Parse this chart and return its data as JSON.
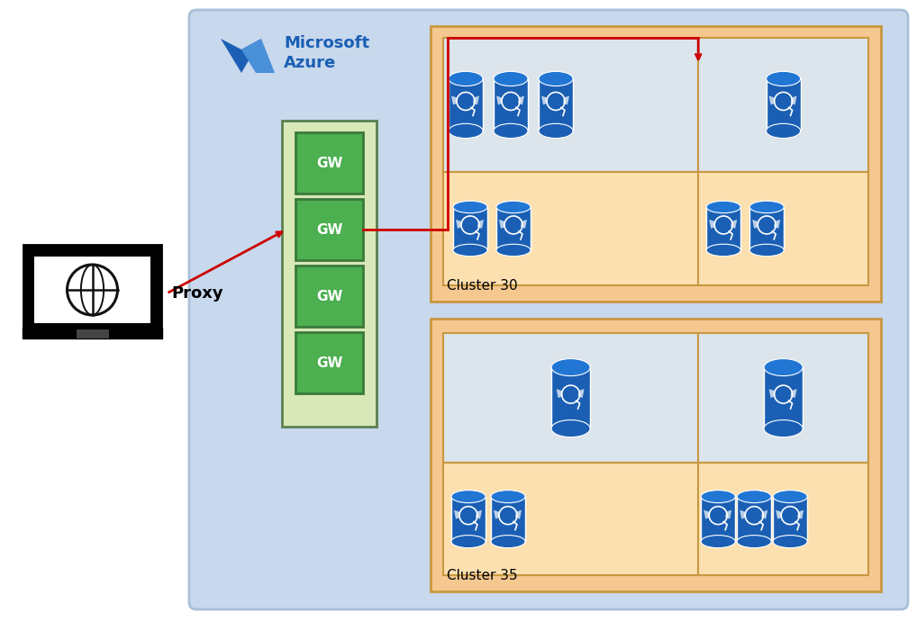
{
  "fig_width": 10.18,
  "fig_height": 6.91,
  "dpi": 100,
  "bg_outer": "#ffffff",
  "bg_azure": "#c8d8ed",
  "azure_border": "#a8c0d8",
  "gw_container_fill": "#d8e8b8",
  "gw_container_border": "#5a8050",
  "gw_fill": "#4caf50",
  "gw_border": "#3a7a3a",
  "gw_text_color": "#ffffff",
  "cluster_outer_fill": "#f5c890",
  "cluster_outer_border": "#c89840",
  "cluster_inner_gray_fill": "#dce4ec",
  "cluster_inner_gray_border": "#c89840",
  "cluster_inner_orange_fill": "#fde0b0",
  "cluster_inner_orange_border": "#c89840",
  "db_body_color": "#1a5fb4",
  "db_top_color": "#2176d4",
  "db_edge_color": "#ffffff",
  "arrow_color": "#cc0000",
  "proxy_label": "Proxy",
  "gw_label": "GW",
  "cluster30_label": "Cluster 30",
  "cluster35_label": "Cluster 35",
  "azure_text": "Microsoft\nAzure",
  "azure_text_color": "#1a5fb4",
  "azure_logo_dark": "#1a5fb4",
  "azure_logo_light": "#4a90d9",
  "laptop_color": "#111111",
  "globe_color": "#111111"
}
